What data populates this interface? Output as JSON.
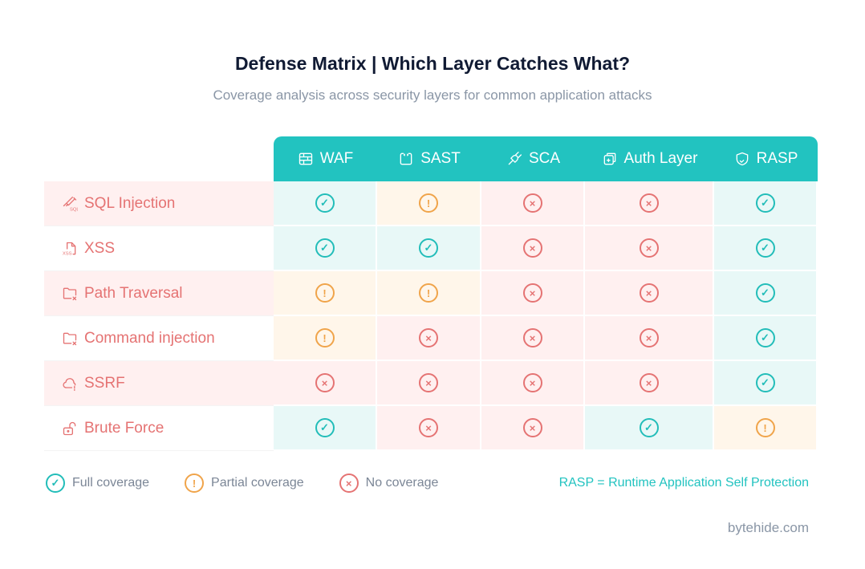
{
  "title": "Defense Matrix | Which Layer Catches What?",
  "subtitle": "Coverage analysis across security layers for common application attacks",
  "columns": [
    {
      "label": "WAF",
      "icon": "firewall-icon"
    },
    {
      "label": "SAST",
      "icon": "code-scan-icon"
    },
    {
      "label": "SCA",
      "icon": "plug-icon"
    },
    {
      "label": "Auth Layer",
      "icon": "auth-icon"
    },
    {
      "label": "RASP",
      "icon": "shield-check-icon"
    }
  ],
  "rows": [
    {
      "label": "SQL Injection",
      "icon": "syringe-sql-icon",
      "cells": [
        "full",
        "partial",
        "none",
        "none",
        "full"
      ]
    },
    {
      "label": "XSS",
      "icon": "xss-file-icon",
      "cells": [
        "full",
        "full",
        "none",
        "none",
        "full"
      ]
    },
    {
      "label": "Path Traversal",
      "icon": "folder-x-icon",
      "cells": [
        "partial",
        "partial",
        "none",
        "none",
        "full"
      ]
    },
    {
      "label": "Command injection",
      "icon": "folder-x-icon",
      "cells": [
        "partial",
        "none",
        "none",
        "none",
        "full"
      ]
    },
    {
      "label": "SSRF",
      "icon": "cloud-alert-icon",
      "cells": [
        "none",
        "none",
        "none",
        "none",
        "full"
      ]
    },
    {
      "label": "Brute Force",
      "icon": "unlock-icon",
      "cells": [
        "full",
        "none",
        "none",
        "full",
        "partial"
      ]
    }
  ],
  "legend": [
    {
      "status": "full",
      "label": "Full coverage"
    },
    {
      "status": "partial",
      "label": "Partial coverage"
    },
    {
      "status": "none",
      "label": "No coverage"
    }
  ],
  "note": "RASP = Runtime Application Self Protection",
  "brand": "bytehide.com",
  "colors": {
    "accent": "#22c3c0",
    "full": "#22bdb9",
    "partial": "#f0a44a",
    "none": "#e57373"
  }
}
